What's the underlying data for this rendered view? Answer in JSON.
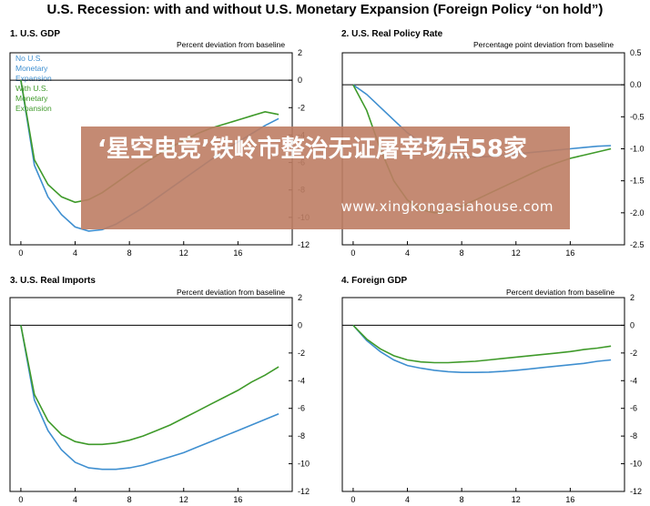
{
  "title": "U.S. Recession: with and without U.S. Monetary Expansion (Foreign Policy “on hold”)",
  "legend": {
    "no_expansion": "No U.S. Monetary Expansion",
    "with_expansion": "With U.S. Monetary Expansion"
  },
  "colors": {
    "no_expansion": "#3f8fd0",
    "with_expansion": "#3f9a2a"
  },
  "overlay": {
    "headline": "‘星空电竞’铁岭市整治无证屠宰场点58家",
    "url": "www.xingkongasiahouse.com",
    "color": "#be7e64"
  },
  "chart_data": [
    {
      "type": "line",
      "title": "1. U.S. GDP",
      "unit_label": "Percent deviation from baseline",
      "x_ticks": [
        0,
        4,
        8,
        12,
        16
      ],
      "y_ticks": [
        2,
        0,
        -2,
        -4,
        -6,
        -8,
        -10,
        -12
      ],
      "xlim": [
        -0.8,
        20
      ],
      "ylim": [
        -12,
        2
      ],
      "series": [
        {
          "name": "No U.S. Monetary Expansion",
          "x": [
            0,
            1,
            2,
            3,
            4,
            5,
            6,
            7,
            8,
            9,
            10,
            11,
            12,
            13,
            14,
            15,
            16,
            17,
            18,
            19
          ],
          "y": [
            0,
            -6.2,
            -8.5,
            -9.8,
            -10.7,
            -11.0,
            -10.9,
            -10.5,
            -9.9,
            -9.3,
            -8.6,
            -7.9,
            -7.2,
            -6.5,
            -5.8,
            -5.1,
            -4.5,
            -3.9,
            -3.3,
            -2.8
          ]
        },
        {
          "name": "With U.S. Monetary Expansion",
          "x": [
            0,
            1,
            2,
            3,
            4,
            5,
            6,
            7,
            8,
            9,
            10,
            11,
            12,
            13,
            14,
            15,
            16,
            17,
            18,
            19
          ],
          "y": [
            0,
            -5.8,
            -7.6,
            -8.5,
            -8.9,
            -8.7,
            -8.2,
            -7.5,
            -6.8,
            -6.1,
            -5.5,
            -4.9,
            -4.4,
            -3.9,
            -3.5,
            -3.2,
            -2.9,
            -2.6,
            -2.3,
            -2.5
          ]
        }
      ]
    },
    {
      "type": "line",
      "title": "2. U.S. Real Policy Rate",
      "unit_label": "Percentage point deviation from baseline",
      "x_ticks": [
        0,
        4,
        8,
        12,
        16
      ],
      "y_ticks": [
        0.5,
        0.0,
        -0.5,
        -1.0,
        -1.5,
        -2.0,
        -2.5
      ],
      "y_tick_labels": [
        "0.5",
        "0.0",
        "-0.5",
        "-1.0",
        "-1.5",
        "-2.0",
        "-2.5"
      ],
      "xlim": [
        -0.8,
        20
      ],
      "ylim": [
        -2.5,
        0.5
      ],
      "series": [
        {
          "name": "No U.S. Monetary Expansion",
          "x": [
            0,
            1,
            2,
            3,
            4,
            5,
            6,
            7,
            8,
            9,
            10,
            11,
            12,
            13,
            14,
            15,
            16,
            17,
            18,
            19
          ],
          "y": [
            0,
            -0.15,
            -0.35,
            -0.55,
            -0.75,
            -0.9,
            -1.0,
            -1.08,
            -1.12,
            -1.13,
            -1.12,
            -1.1,
            -1.08,
            -1.06,
            -1.04,
            -1.02,
            -1.0,
            -0.98,
            -0.96,
            -0.95
          ]
        },
        {
          "name": "With U.S. Monetary Expansion",
          "x": [
            0,
            1,
            2,
            3,
            4,
            5,
            6,
            7,
            8,
            9,
            10,
            11,
            12,
            13,
            14,
            15,
            16,
            17,
            18,
            19
          ],
          "y": [
            0,
            -0.4,
            -1.0,
            -1.5,
            -1.8,
            -1.95,
            -2.0,
            -1.98,
            -1.9,
            -1.8,
            -1.7,
            -1.6,
            -1.5,
            -1.4,
            -1.3,
            -1.22,
            -1.15,
            -1.1,
            -1.05,
            -1.0
          ]
        }
      ]
    },
    {
      "type": "line",
      "title": "3. U.S. Real Imports",
      "unit_label": "Percent deviation from baseline",
      "x_ticks": [
        0,
        4,
        8,
        12,
        16
      ],
      "y_ticks": [
        2,
        0,
        -2,
        -4,
        -6,
        -8,
        -10,
        -12
      ],
      "xlim": [
        -0.8,
        20
      ],
      "ylim": [
        -12,
        2
      ],
      "series": [
        {
          "name": "No U.S. Monetary Expansion",
          "x": [
            0,
            1,
            2,
            3,
            4,
            5,
            6,
            7,
            8,
            9,
            10,
            11,
            12,
            13,
            14,
            15,
            16,
            17,
            18,
            19
          ],
          "y": [
            0,
            -5.4,
            -7.6,
            -9.0,
            -9.9,
            -10.3,
            -10.4,
            -10.4,
            -10.3,
            -10.1,
            -9.8,
            -9.5,
            -9.2,
            -8.8,
            -8.4,
            -8.0,
            -7.6,
            -7.2,
            -6.8,
            -6.4
          ]
        },
        {
          "name": "With U.S. Monetary Expansion",
          "x": [
            0,
            1,
            2,
            3,
            4,
            5,
            6,
            7,
            8,
            9,
            10,
            11,
            12,
            13,
            14,
            15,
            16,
            17,
            18,
            19
          ],
          "y": [
            0,
            -5.0,
            -6.9,
            -7.9,
            -8.4,
            -8.6,
            -8.6,
            -8.5,
            -8.3,
            -8.0,
            -7.6,
            -7.2,
            -6.7,
            -6.2,
            -5.7,
            -5.2,
            -4.7,
            -4.1,
            -3.6,
            -3.0
          ]
        }
      ]
    },
    {
      "type": "line",
      "title": "4. Foreign GDP",
      "unit_label": "Percent deviation from baseline",
      "x_ticks": [
        0,
        4,
        8,
        12,
        16
      ],
      "y_ticks": [
        2,
        0,
        -2,
        -4,
        -6,
        -8,
        -10,
        -12
      ],
      "xlim": [
        -0.8,
        20
      ],
      "ylim": [
        -12,
        2
      ],
      "series": [
        {
          "name": "No U.S. Monetary Expansion",
          "x": [
            0,
            1,
            2,
            3,
            4,
            5,
            6,
            7,
            8,
            9,
            10,
            11,
            12,
            13,
            14,
            15,
            16,
            17,
            18,
            19
          ],
          "y": [
            0,
            -1.1,
            -1.9,
            -2.5,
            -2.9,
            -3.1,
            -3.25,
            -3.35,
            -3.4,
            -3.4,
            -3.38,
            -3.33,
            -3.25,
            -3.15,
            -3.05,
            -2.95,
            -2.85,
            -2.75,
            -2.6,
            -2.5
          ]
        },
        {
          "name": "With U.S. Monetary Expansion",
          "x": [
            0,
            1,
            2,
            3,
            4,
            5,
            6,
            7,
            8,
            9,
            10,
            11,
            12,
            13,
            14,
            15,
            16,
            17,
            18,
            19
          ],
          "y": [
            0,
            -1.0,
            -1.7,
            -2.2,
            -2.5,
            -2.65,
            -2.7,
            -2.7,
            -2.65,
            -2.6,
            -2.5,
            -2.4,
            -2.3,
            -2.2,
            -2.1,
            -2.0,
            -1.9,
            -1.75,
            -1.65,
            -1.5
          ]
        }
      ]
    }
  ]
}
